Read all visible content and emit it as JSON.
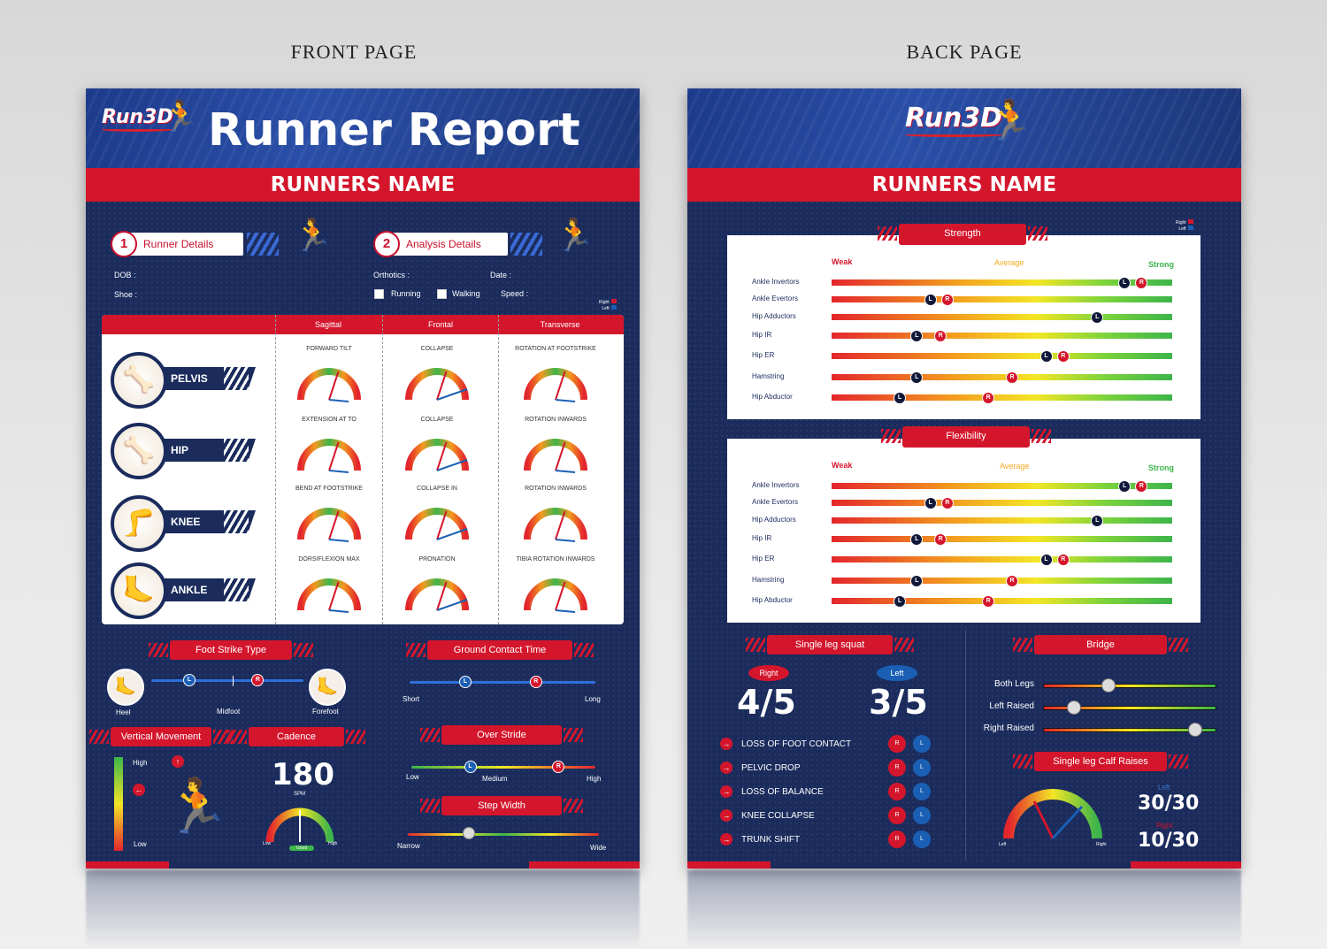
{
  "labels": {
    "front": "FRONT PAGE",
    "back": "BACK PAGE"
  },
  "brand": {
    "logo": "Run3D"
  },
  "front": {
    "title": "Runner Report",
    "runner_name": "RUNNERS NAME",
    "sections": [
      {
        "num": "1",
        "label": "Runner Details",
        "fields": [
          "DOB :",
          "Shoe :"
        ]
      },
      {
        "num": "2",
        "label": "Analysis Details",
        "fields": [
          "Orthotics :",
          "Date :",
          "Running",
          "Walking",
          "Speed :"
        ]
      }
    ],
    "legend": {
      "right": "Right",
      "left": "Left"
    },
    "table": {
      "columns": [
        "Sagittal",
        "Frontal",
        "Transverse"
      ],
      "parts": [
        "PELVIS",
        "HIP",
        "KNEE",
        "ANKLE"
      ],
      "gauges": [
        [
          "FORWARD TILT",
          "COLLAPSE",
          "ROTATION AT FOOTSTRIKE"
        ],
        [
          "EXTENSION AT TO",
          "COLLAPSE",
          "ROTATION INWARDS"
        ],
        [
          "BEND AT FOOTSTRIKE",
          "COLLAPSE IN",
          "ROTATION INWARDS"
        ],
        [
          "DORSIFLEXION MAX",
          "PRONATION",
          "TIBIA ROTATION INWARDS"
        ]
      ]
    },
    "foot_strike": {
      "title": "Foot Strike Type",
      "left": "Heel",
      "mid": "Midfoot",
      "right": "Forefoot",
      "L": 0.25,
      "R": 0.7
    },
    "ground_contact": {
      "title": "Ground Contact Time",
      "left": "Short",
      "right": "Long",
      "L": 0.3,
      "R": 0.68
    },
    "vertical": {
      "title": "Vertical Movement",
      "high": "High",
      "low": "Low"
    },
    "cadence": {
      "title": "Cadence",
      "value": "180",
      "unit": "SPM",
      "low": "Low",
      "mid": "Good",
      "high": "High"
    },
    "over_stride": {
      "title": "Over Stride",
      "left": "Low",
      "mid": "Medium",
      "right": "High",
      "L": 0.32,
      "R": 0.8
    },
    "step_width": {
      "title": "Step Width",
      "left": "Narrow",
      "right": "Wide",
      "pos": 0.32
    }
  },
  "back": {
    "runner_name": "RUNNERS NAME",
    "legend": {
      "right": "Right",
      "left": "Left"
    },
    "scale": {
      "weak": "Weak",
      "average": "Average",
      "strong": "Strong"
    },
    "strength": {
      "title": "Strength",
      "rows": [
        {
          "label": "Ankle Invertors",
          "L": 0.86,
          "R": 0.91
        },
        {
          "label": "Ankle Evertors",
          "L": 0.29,
          "R": 0.34
        },
        {
          "label": "Hip Adductors",
          "L": 0.78,
          "R": null
        },
        {
          "label": "Hip IR",
          "L": 0.25,
          "R": 0.32
        },
        {
          "label": "Hip ER",
          "L": 0.63,
          "R": 0.68
        },
        {
          "label": "Hamstring",
          "L": 0.25,
          "R": 0.53
        },
        {
          "label": "Hip Abductor",
          "L": 0.2,
          "R": 0.46
        }
      ]
    },
    "flexibility": {
      "title": "Flexibility",
      "rows": [
        {
          "label": "Ankle Invertors",
          "L": 0.86,
          "R": 0.91
        },
        {
          "label": "Ankle Evertors",
          "L": 0.29,
          "R": 0.34
        },
        {
          "label": "Hip Adductors",
          "L": 0.78,
          "R": null
        },
        {
          "label": "Hip IR",
          "L": 0.25,
          "R": 0.32
        },
        {
          "label": "Hip ER",
          "L": 0.63,
          "R": 0.68
        },
        {
          "label": "Hamstring",
          "L": 0.25,
          "R": 0.53
        },
        {
          "label": "Hip Abductor",
          "L": 0.2,
          "R": 0.46
        }
      ]
    },
    "single_leg_squat": {
      "title": "Single leg squat",
      "right_label": "Right",
      "right_score": "4/5",
      "left_label": "Left",
      "left_score": "3/5",
      "items": [
        "LOSS OF FOOT CONTACT",
        "PELVIC DROP",
        "LOSS OF BALANCE",
        "KNEE COLLAPSE",
        "TRUNK SHIFT"
      ]
    },
    "bridge": {
      "title": "Bridge",
      "rows": [
        {
          "label": "Both Legs",
          "pos": 0.38
        },
        {
          "label": "Left Raised",
          "pos": 0.18
        },
        {
          "label": "Right Raised",
          "pos": 0.88
        }
      ]
    },
    "calf": {
      "title": "Single leg Calf Raises",
      "left_label": "Left",
      "left_score": "30/30",
      "right_label": "Right",
      "right_score": "10/30",
      "gauge_left": "Left",
      "gauge_right": "Right"
    }
  }
}
